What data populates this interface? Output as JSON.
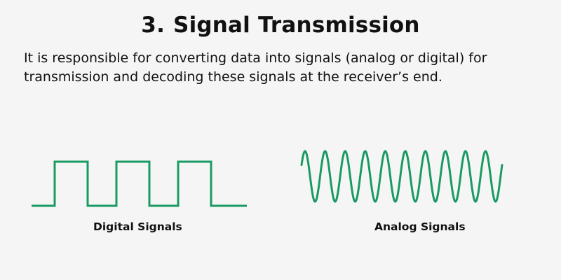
{
  "section_number": "3.",
  "title": "Signal Transmission",
  "description": "It is responsible for converting data into signals (analog or digital) for transmission and decoding these signals at the receiver’s end.",
  "signals": [
    {
      "label": "Digital Signals",
      "kind": "square",
      "pulses": 3
    },
    {
      "label": "Analog Signals",
      "kind": "sine",
      "cycles": 10
    }
  ],
  "colors": {
    "signal": "#1a9a63",
    "background": "#f5f5f5",
    "text": "#111111"
  }
}
